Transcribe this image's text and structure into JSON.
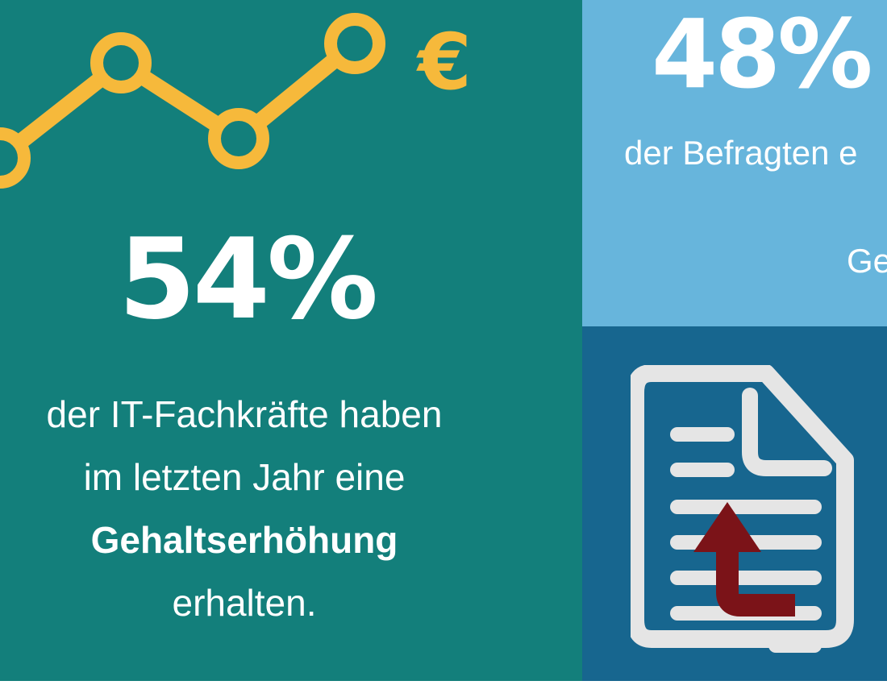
{
  "left_panel": {
    "icon_name": "trend-line-euro-icon",
    "icon_color": "#f6b93b",
    "background": "#137f7b",
    "stat": "54%",
    "description": {
      "line1": "der IT-Fachkräfte haben",
      "line2": "im letzten Jahr eine",
      "line3_bold": "Gehaltserhöhung",
      "line4": "erhalten."
    }
  },
  "right_top_panel": {
    "background": "#67b5dc",
    "stat": "48%",
    "description_line1": "der Befragten e",
    "description_line2": "Ge"
  },
  "right_bottom_panel": {
    "background": "#17668f",
    "icon_name": "document-upload-arrow-icon",
    "arrow_color": "#7b1318"
  }
}
